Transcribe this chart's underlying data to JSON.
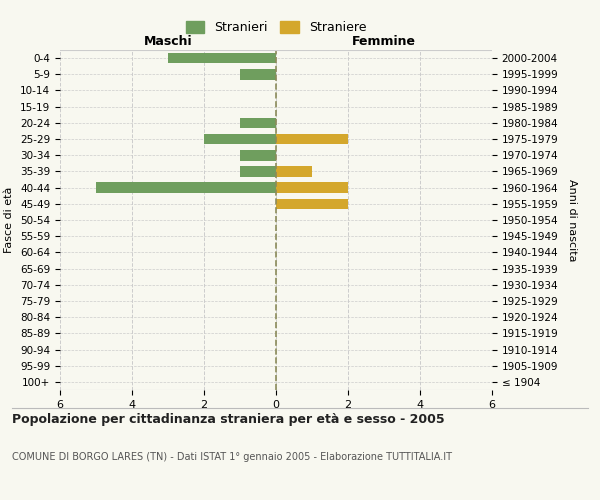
{
  "age_groups": [
    "100+",
    "95-99",
    "90-94",
    "85-89",
    "80-84",
    "75-79",
    "70-74",
    "65-69",
    "60-64",
    "55-59",
    "50-54",
    "45-49",
    "40-44",
    "35-39",
    "30-34",
    "25-29",
    "20-24",
    "15-19",
    "10-14",
    "5-9",
    "0-4"
  ],
  "birth_years": [
    "≤ 1904",
    "1905-1909",
    "1910-1914",
    "1915-1919",
    "1920-1924",
    "1925-1929",
    "1930-1934",
    "1935-1939",
    "1940-1944",
    "1945-1949",
    "1950-1954",
    "1955-1959",
    "1960-1964",
    "1965-1969",
    "1970-1974",
    "1975-1979",
    "1980-1984",
    "1985-1989",
    "1990-1994",
    "1995-1999",
    "2000-2004"
  ],
  "males": [
    0,
    0,
    0,
    0,
    0,
    0,
    0,
    0,
    0,
    0,
    0,
    0,
    5,
    1,
    1,
    2,
    1,
    0,
    0,
    1,
    3
  ],
  "females": [
    0,
    0,
    0,
    0,
    0,
    0,
    0,
    0,
    0,
    0,
    0,
    2,
    2,
    1,
    0,
    2,
    0,
    0,
    0,
    0,
    0
  ],
  "male_color": "#6f9e5e",
  "female_color": "#d4a72c",
  "title_main": "Popolazione per cittadinanza straniera per età e sesso - 2005",
  "title_sub": "COMUNE DI BORGO LARES (TN) - Dati ISTAT 1° gennaio 2005 - Elaborazione TUTTITALIA.IT",
  "xlabel_left": "Maschi",
  "xlabel_right": "Femmine",
  "ylabel_left": "Fasce di età",
  "ylabel_right": "Anni di nascita",
  "legend_male": "Stranieri",
  "legend_female": "Straniere",
  "xlim": 6,
  "background_color": "#f8f8f0",
  "grid_color": "#cccccc"
}
